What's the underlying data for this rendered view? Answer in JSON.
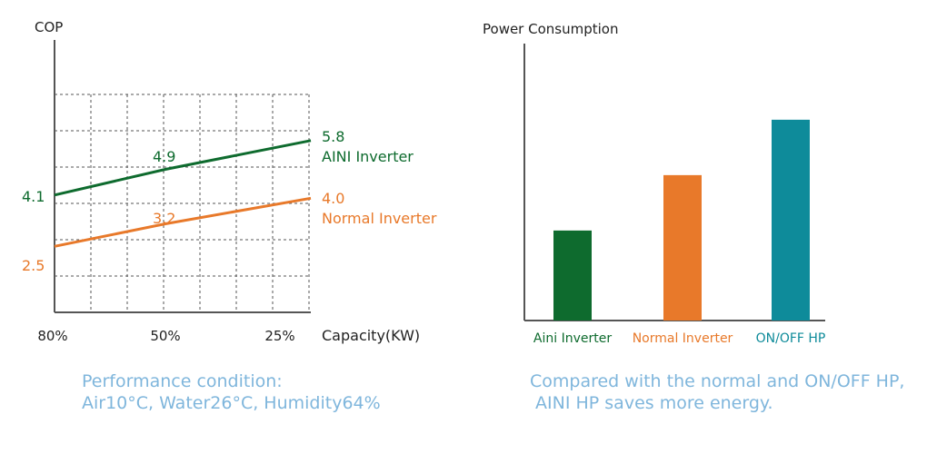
{
  "chart_data": [
    {
      "type": "line",
      "ylabel": "COP",
      "xlabel": "Capacity(KW)",
      "categories": [
        "80%",
        "50%",
        "25%"
      ],
      "series": [
        {
          "name": "AINI Inverter",
          "color": "#0e6b2e",
          "values": [
            4.1,
            4.9,
            5.8
          ],
          "labels": [
            "4.1",
            "4.9",
            "5.8"
          ]
        },
        {
          "name": "Normal Inverter",
          "color": "#e8792a",
          "values": [
            2.5,
            3.2,
            4.0
          ],
          "labels": [
            "2.5",
            "3.2",
            "4.0"
          ]
        }
      ],
      "grid": true,
      "grid_style": "dashed"
    },
    {
      "type": "bar",
      "ylabel": "Power Consumption",
      "categories": [
        "Aini Inverter",
        "Normal Inverter",
        "ON/OFF HP"
      ],
      "values": [
        26,
        42,
        58
      ],
      "ylim": [
        0,
        80
      ],
      "colors": [
        "#0e6b2e",
        "#e8792a",
        "#0e8b9a"
      ]
    }
  ],
  "captions": {
    "left_line1": "Performance condition:",
    "left_line2": "Air10°C, Water26°C, Humidity64%",
    "right_line1": "Compared with the normal and ON/OFF HP,",
    "right_line2": " AINI HP saves more energy."
  }
}
